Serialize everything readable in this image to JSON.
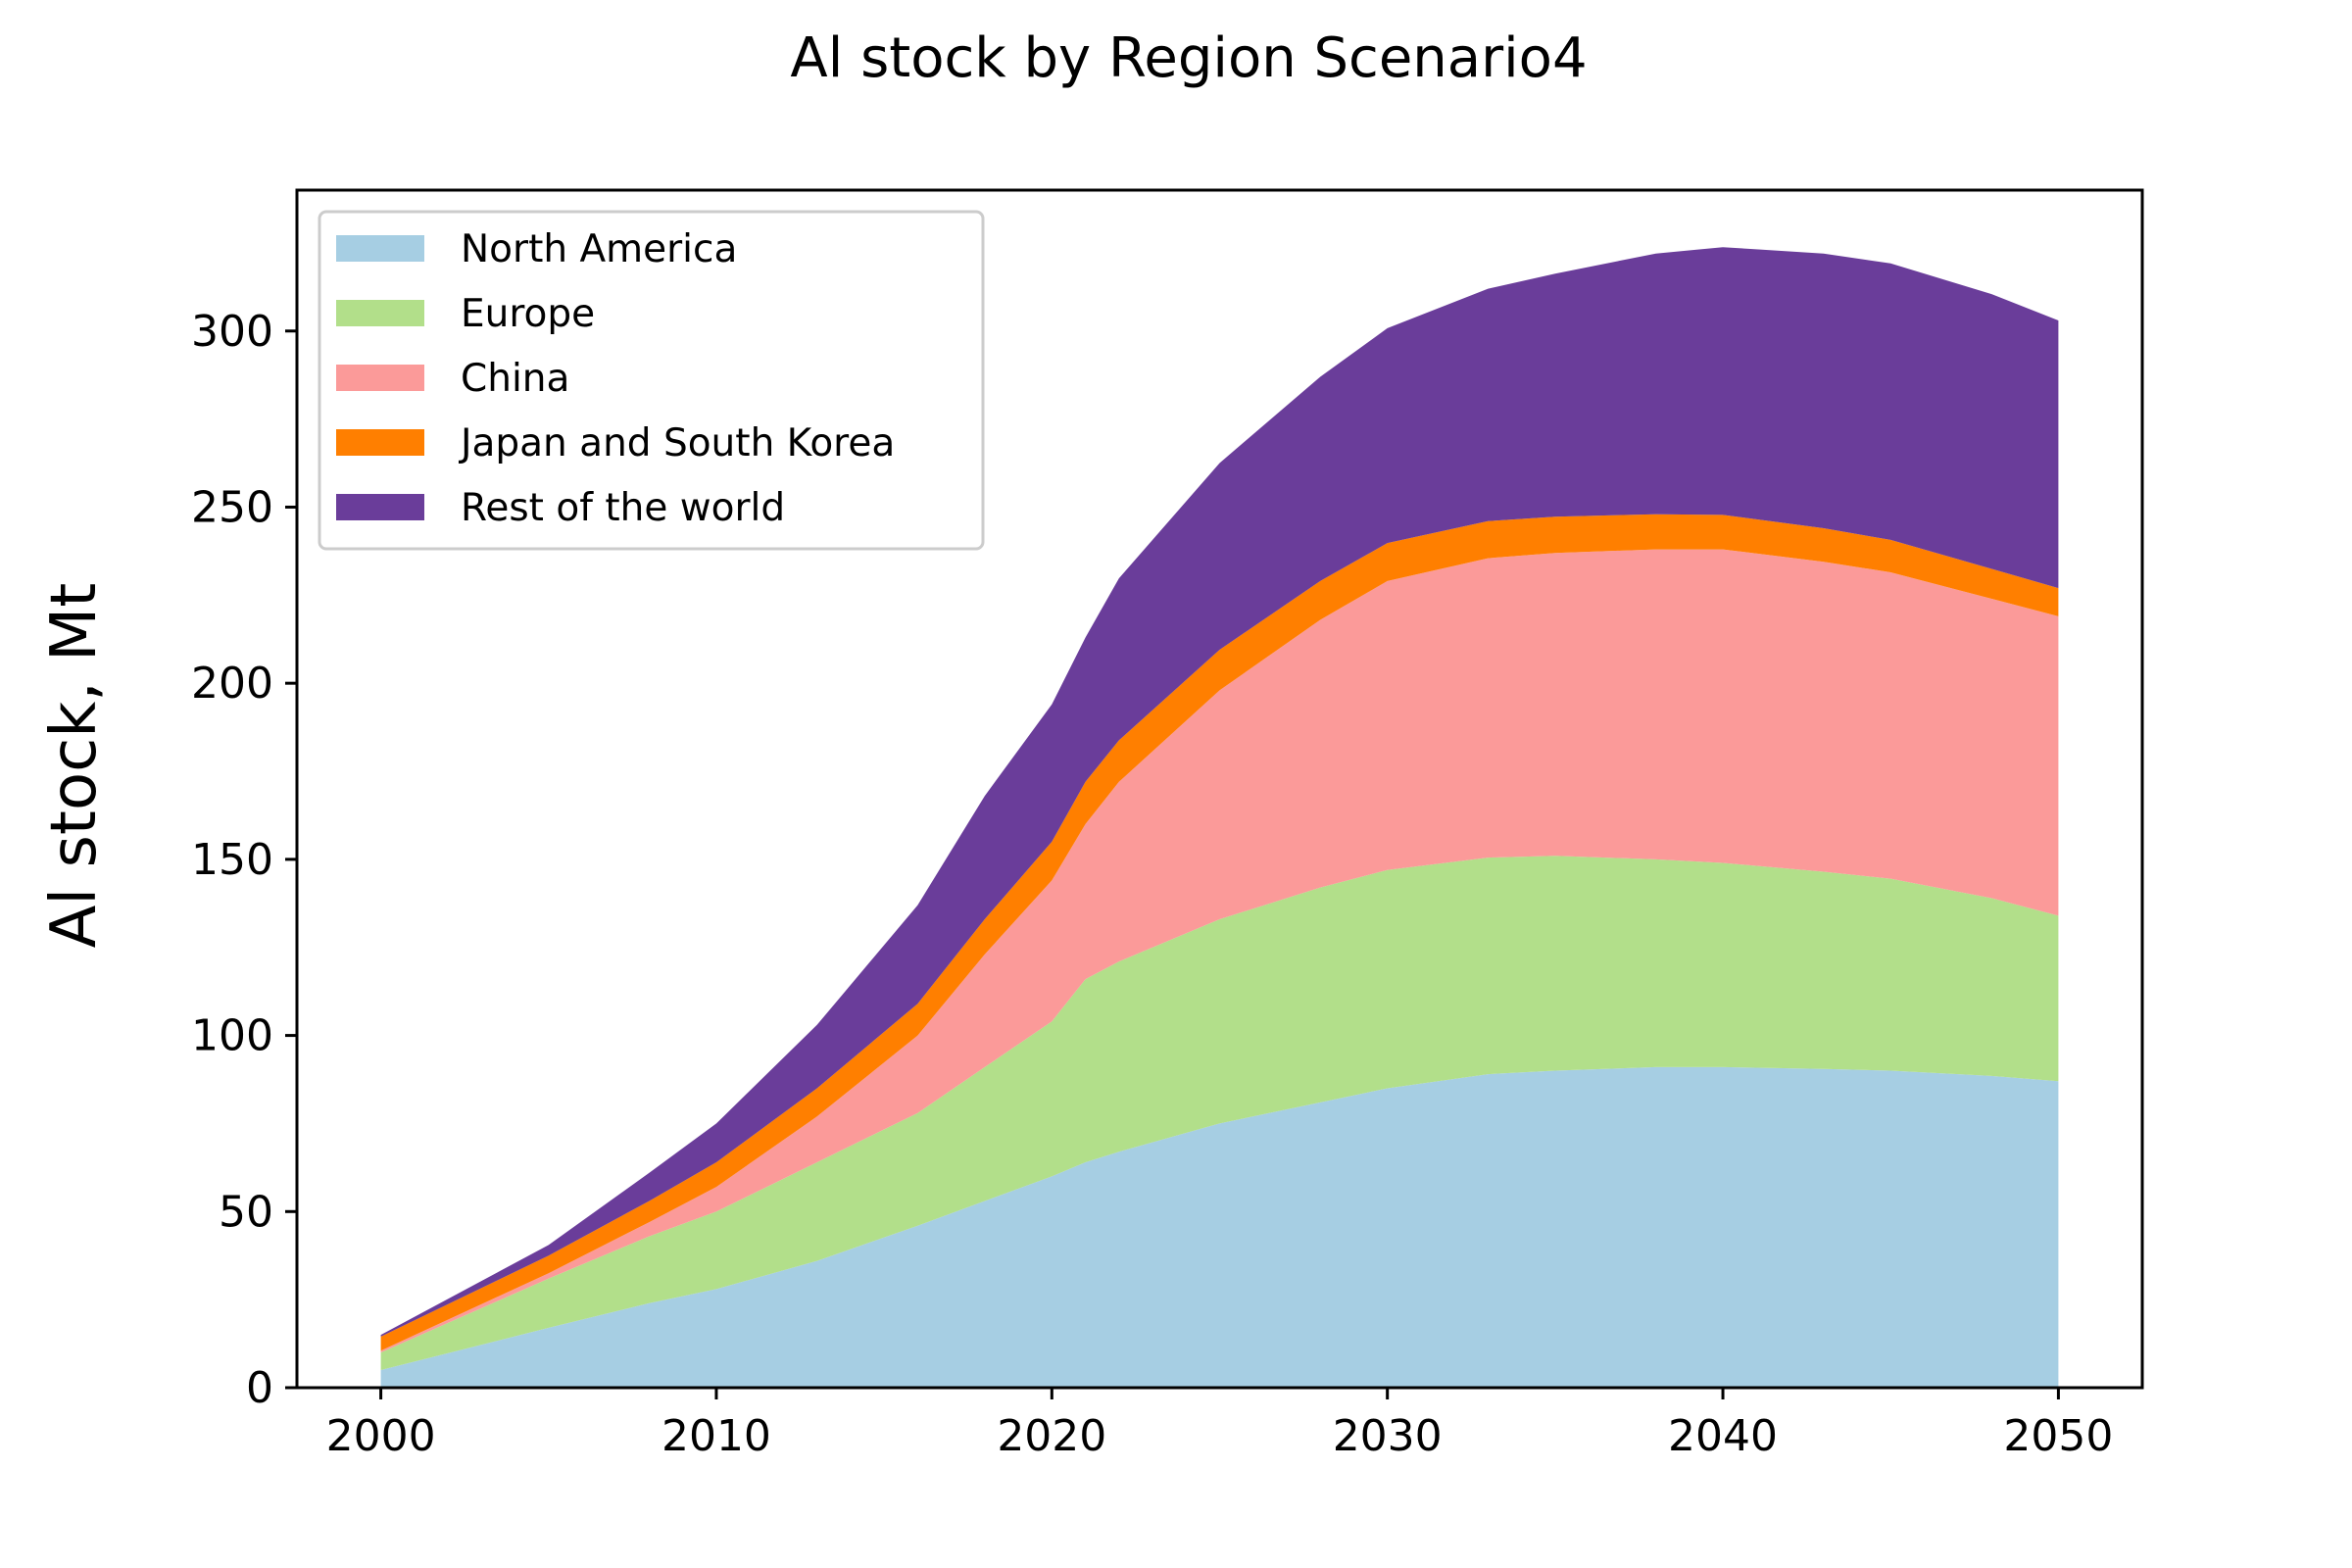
{
  "chart_data": {
    "type": "area",
    "stacked": true,
    "title": "Al stock by Region Scenario4",
    "xlabel": "",
    "ylabel": "Al stock, Mt",
    "xlim": [
      1997.5,
      2052.5
    ],
    "ylim": [
      0,
      340
    ],
    "xticks": [
      2000,
      2010,
      2020,
      2030,
      2040,
      2050
    ],
    "yticks": [
      0,
      50,
      100,
      150,
      200,
      250,
      300
    ],
    "grid": false,
    "legend_position": "top-left",
    "x": [
      2000,
      2005,
      2008,
      2010,
      2013,
      2016,
      2018,
      2020,
      2021,
      2022,
      2025,
      2028,
      2030,
      2033,
      2035,
      2038,
      2040,
      2043,
      2045,
      2048,
      2050
    ],
    "series": [
      {
        "name": "North America",
        "color": "#a6cee3",
        "values": [
          5,
          17,
          24,
          28,
          36,
          46,
          53,
          60,
          64,
          67,
          75,
          81,
          85,
          89,
          90,
          91,
          91,
          90.5,
          90,
          88.5,
          87
        ]
      },
      {
        "name": "Europe",
        "color": "#b2df8a",
        "values": [
          5,
          14,
          19,
          22,
          28,
          32,
          38,
          44,
          52,
          54,
          58,
          61,
          62,
          61.5,
          61,
          59,
          58,
          56,
          54.5,
          50.5,
          47
        ]
      },
      {
        "name": "China",
        "color": "#fb9a99",
        "values": [
          0.5,
          1.5,
          4,
          7,
          13,
          22,
          32,
          40,
          44,
          51,
          65,
          76,
          82,
          85,
          86,
          88,
          89,
          88,
          87,
          85,
          85
        ]
      },
      {
        "name": "Japan and South Korea",
        "color": "#ff7f00",
        "values": [
          4,
          5,
          6,
          7,
          8,
          9,
          10,
          11,
          12,
          11.8,
          11.5,
          11,
          10.8,
          10.5,
          10.3,
          10,
          9.8,
          9.5,
          9.2,
          8.5,
          8
        ]
      },
      {
        "name": "Rest of the world",
        "color": "#6a3d9a",
        "values": [
          0.5,
          3,
          8,
          11,
          18,
          28,
          35,
          39,
          41,
          46,
          53,
          58,
          61,
          66,
          69,
          74,
          76,
          78,
          78.5,
          78,
          76
        ]
      }
    ]
  }
}
